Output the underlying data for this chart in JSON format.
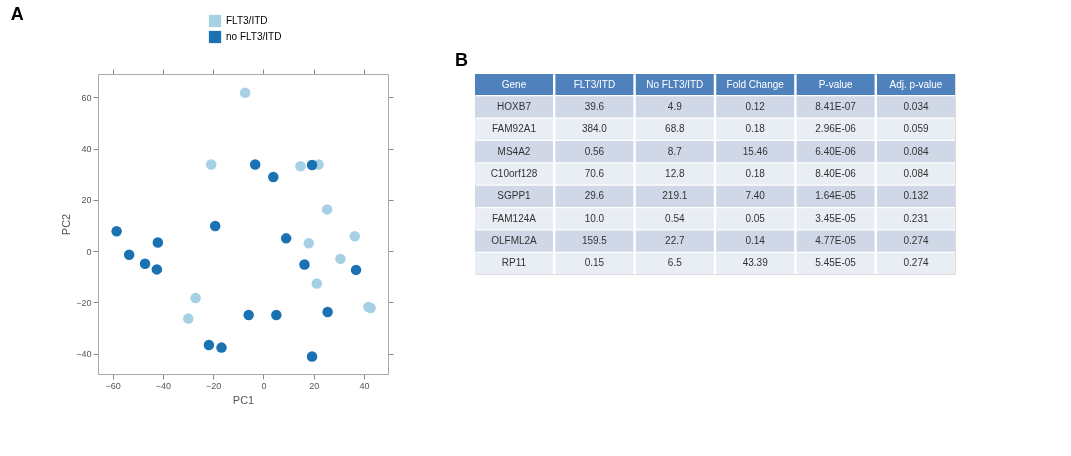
{
  "chart_data": [
    {
      "type": "scatter",
      "title": "A",
      "xlabel": "PC1",
      "ylabel": "PC2",
      "legend": "top",
      "grid": false,
      "marker": "circle",
      "xlim": [
        -65.8,
        49.5
      ],
      "xticks": [
        -60,
        -40,
        -20,
        0,
        20,
        40
      ],
      "ylim": [
        -47.9,
        69.1
      ],
      "yticks": [
        -40,
        -20,
        0,
        20,
        40,
        60
      ],
      "series": [
        {
          "name": "FLT3/ITD",
          "color": "#a6d0e4",
          "x": [
            -7.3,
            -20.8,
            14.7,
            21.9,
            -27.0,
            -29.9,
            18.0,
            25.3,
            21.2,
            30.6,
            36.3,
            41.7,
            42.6
          ],
          "values": [
            61.8,
            33.8,
            33.1,
            33.8,
            -18.3,
            -26.3,
            3.1,
            16.3,
            -12.6,
            -3.0,
            5.8,
            -21.8,
            -22.2
          ]
        },
        {
          "name": "no FLT3/ITD",
          "color": "#1a72b2",
          "x": [
            -3.3,
            3.9,
            19.3,
            -58.4,
            -53.4,
            -47.1,
            -42.0,
            -42.4,
            -19.2,
            -21.7,
            -16.7,
            -5.9,
            5.1,
            9.0,
            16.3,
            25.5,
            19.3,
            36.8
          ],
          "values": [
            33.8,
            28.9,
            33.6,
            7.8,
            -1.4,
            -4.9,
            3.4,
            -7.1,
            9.8,
            -36.6,
            -37.6,
            -24.9,
            -24.9,
            5.0,
            -5.2,
            -23.7,
            -41.1,
            -7.3
          ]
        }
      ]
    },
    {
      "type": "other",
      "title": "B",
      "categories": [
        "Gene",
        "FLT3/ITD",
        "No FLT3/ITD",
        "Fold Change",
        "P-value",
        "Adj. p-value"
      ],
      "cell_labels": [
        [
          "HOXB7",
          "39.6",
          "4.9",
          "0.12",
          "8.41E-07",
          "0.034"
        ],
        [
          "FAM92A1",
          "384.0",
          "68.8",
          "0.18",
          "2.96E-06",
          "0.059"
        ],
        [
          "MS4A2",
          "0.56",
          "8.7",
          "15.46",
          "6.40E-06",
          "0.084"
        ],
        [
          "C10orf128",
          "70.6",
          "12.8",
          "0.18",
          "8.40E-06",
          "0.084"
        ],
        [
          "SGPP1",
          "29.6",
          "219.1",
          "7.40",
          "1.64E-05",
          "0.132"
        ],
        [
          "FAM124A",
          "10.0",
          "0.54",
          "0.05",
          "3.45E-05",
          "0.231"
        ],
        [
          "OLFML2A",
          "159.5",
          "22.7",
          "0.14",
          "4.77E-05",
          "0.274"
        ],
        [
          "RP11",
          "0.15",
          "6.5",
          "43.39",
          "5.45E-05",
          "0.274"
        ]
      ]
    }
  ]
}
